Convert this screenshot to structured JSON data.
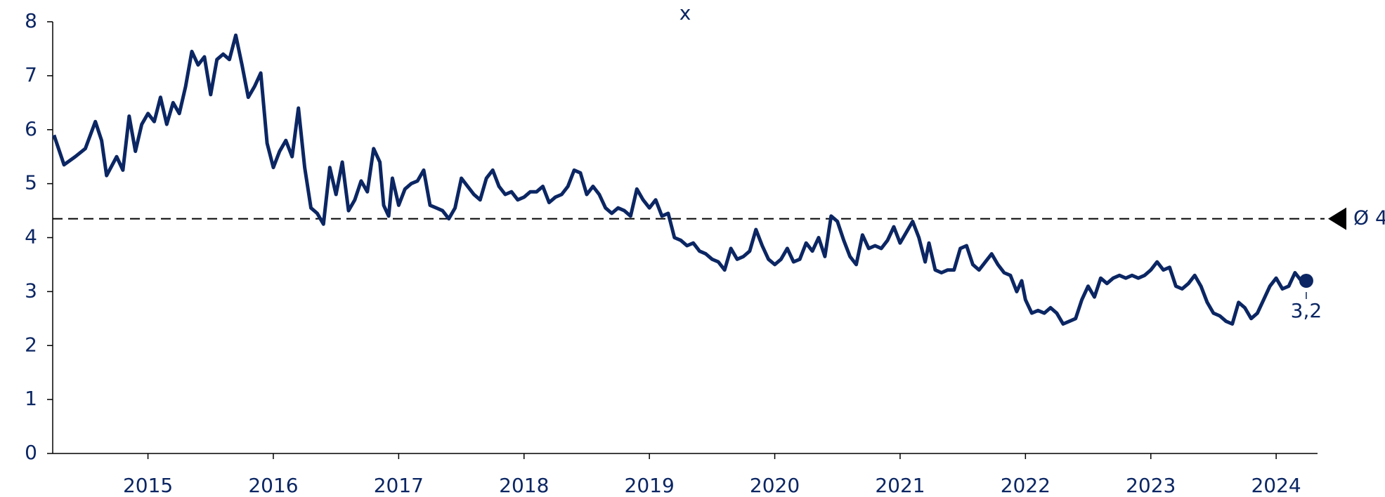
{
  "chart_data": {
    "type": "line",
    "title": "x",
    "x": [
      2014.25,
      2014.33,
      2014.42,
      2014.5,
      2014.58,
      2014.63,
      2014.67,
      2014.75,
      2014.8,
      2014.85,
      2014.9,
      2014.95,
      2015.0,
      2015.05,
      2015.1,
      2015.15,
      2015.2,
      2015.25,
      2015.3,
      2015.35,
      2015.4,
      2015.45,
      2015.5,
      2015.55,
      2015.6,
      2015.65,
      2015.7,
      2015.75,
      2015.8,
      2015.85,
      2015.9,
      2015.95,
      2016.0,
      2016.05,
      2016.1,
      2016.15,
      2016.2,
      2016.25,
      2016.3,
      2016.35,
      2016.4,
      2016.45,
      2016.5,
      2016.55,
      2016.6,
      2016.65,
      2016.7,
      2016.75,
      2016.8,
      2016.85,
      2016.88,
      2016.92,
      2016.95,
      2017.0,
      2017.05,
      2017.1,
      2017.15,
      2017.2,
      2017.25,
      2017.3,
      2017.35,
      2017.4,
      2017.45,
      2017.5,
      2017.55,
      2017.6,
      2017.65,
      2017.7,
      2017.75,
      2017.8,
      2017.85,
      2017.9,
      2017.95,
      2018.0,
      2018.05,
      2018.1,
      2018.15,
      2018.2,
      2018.25,
      2018.3,
      2018.35,
      2018.4,
      2018.45,
      2018.5,
      2018.55,
      2018.6,
      2018.65,
      2018.7,
      2018.75,
      2018.8,
      2018.85,
      2018.9,
      2018.95,
      2019.0,
      2019.05,
      2019.1,
      2019.15,
      2019.2,
      2019.25,
      2019.3,
      2019.35,
      2019.4,
      2019.45,
      2019.5,
      2019.55,
      2019.6,
      2019.65,
      2019.7,
      2019.75,
      2019.8,
      2019.85,
      2019.9,
      2019.95,
      2020.0,
      2020.05,
      2020.1,
      2020.15,
      2020.2,
      2020.25,
      2020.3,
      2020.35,
      2020.4,
      2020.45,
      2020.5,
      2020.55,
      2020.6,
      2020.65,
      2020.7,
      2020.75,
      2020.8,
      2020.85,
      2020.9,
      2020.95,
      2021.0,
      2021.05,
      2021.1,
      2021.15,
      2021.2,
      2021.23,
      2021.28,
      2021.33,
      2021.38,
      2021.43,
      2021.48,
      2021.53,
      2021.58,
      2021.63,
      2021.68,
      2021.73,
      2021.78,
      2021.83,
      2021.88,
      2021.93,
      2021.97,
      2022.0,
      2022.05,
      2022.1,
      2022.15,
      2022.2,
      2022.25,
      2022.3,
      2022.35,
      2022.4,
      2022.45,
      2022.5,
      2022.55,
      2022.6,
      2022.65,
      2022.7,
      2022.75,
      2022.8,
      2022.85,
      2022.9,
      2022.95,
      2023.0,
      2023.05,
      2023.1,
      2023.15,
      2023.2,
      2023.25,
      2023.3,
      2023.35,
      2023.4,
      2023.45,
      2023.5,
      2023.55,
      2023.6,
      2023.65,
      2023.7,
      2023.75,
      2023.8,
      2023.85,
      2023.9,
      2023.95,
      2024.0,
      2024.05,
      2024.1,
      2024.15,
      2024.2,
      2024.24
    ],
    "series": [
      {
        "name": "x",
        "color": "#0b2663",
        "values": [
          5.9,
          5.35,
          5.5,
          5.65,
          6.15,
          5.8,
          5.15,
          5.5,
          5.25,
          6.25,
          5.6,
          6.1,
          6.3,
          6.15,
          6.6,
          6.1,
          6.5,
          6.3,
          6.8,
          7.45,
          7.2,
          7.35,
          6.65,
          7.3,
          7.4,
          7.3,
          7.75,
          7.2,
          6.6,
          6.8,
          7.05,
          5.75,
          5.3,
          5.6,
          5.8,
          5.5,
          6.4,
          5.3,
          4.55,
          4.45,
          4.25,
          5.3,
          4.8,
          5.4,
          4.5,
          4.7,
          5.05,
          4.85,
          5.65,
          5.4,
          4.6,
          4.4,
          5.1,
          4.6,
          4.9,
          5.0,
          5.05,
          5.25,
          4.6,
          4.55,
          4.5,
          4.35,
          4.55,
          5.1,
          4.95,
          4.8,
          4.7,
          5.1,
          5.25,
          4.95,
          4.8,
          4.85,
          4.7,
          4.75,
          4.85,
          4.85,
          4.95,
          4.65,
          4.75,
          4.8,
          4.95,
          5.25,
          5.2,
          4.8,
          4.95,
          4.8,
          4.55,
          4.45,
          4.55,
          4.5,
          4.4,
          4.9,
          4.7,
          4.55,
          4.7,
          4.4,
          4.45,
          4.0,
          3.95,
          3.85,
          3.9,
          3.75,
          3.7,
          3.6,
          3.55,
          3.4,
          3.8,
          3.6,
          3.65,
          3.75,
          4.15,
          3.85,
          3.6,
          3.5,
          3.6,
          3.8,
          3.55,
          3.6,
          3.9,
          3.75,
          4.0,
          3.65,
          4.4,
          4.3,
          3.95,
          3.65,
          3.5,
          4.05,
          3.8,
          3.85,
          3.8,
          3.95,
          4.2,
          3.9,
          4.1,
          4.3,
          4.0,
          3.55,
          3.9,
          3.4,
          3.35,
          3.4,
          3.4,
          3.8,
          3.85,
          3.5,
          3.4,
          3.55,
          3.7,
          3.5,
          3.35,
          3.3,
          3.0,
          3.2,
          2.85,
          2.6,
          2.65,
          2.6,
          2.7,
          2.6,
          2.4,
          2.45,
          2.5,
          2.85,
          3.1,
          2.9,
          3.25,
          3.15,
          3.25,
          3.3,
          3.25,
          3.3,
          3.25,
          3.3,
          3.4,
          3.55,
          3.4,
          3.45,
          3.1,
          3.05,
          3.15,
          3.3,
          3.1,
          2.8,
          2.6,
          2.55,
          2.45,
          2.4,
          2.8,
          2.7,
          2.5,
          2.6,
          2.85,
          3.1,
          3.25,
          3.05,
          3.1,
          3.35,
          3.2,
          3.2
        ]
      }
    ],
    "xlim": [
      2014.24,
      2024.33
    ],
    "xticks": [
      2015,
      2016,
      2017,
      2018,
      2019,
      2020,
      2021,
      2022,
      2023,
      2024
    ],
    "ylim": [
      0,
      8
    ],
    "yticks": [
      0,
      1,
      2,
      3,
      4,
      5,
      6,
      7,
      8
    ],
    "average": {
      "value": 4.35,
      "label": "Ø 4"
    },
    "end_label": {
      "value": 3.2,
      "label": "3,2"
    }
  }
}
